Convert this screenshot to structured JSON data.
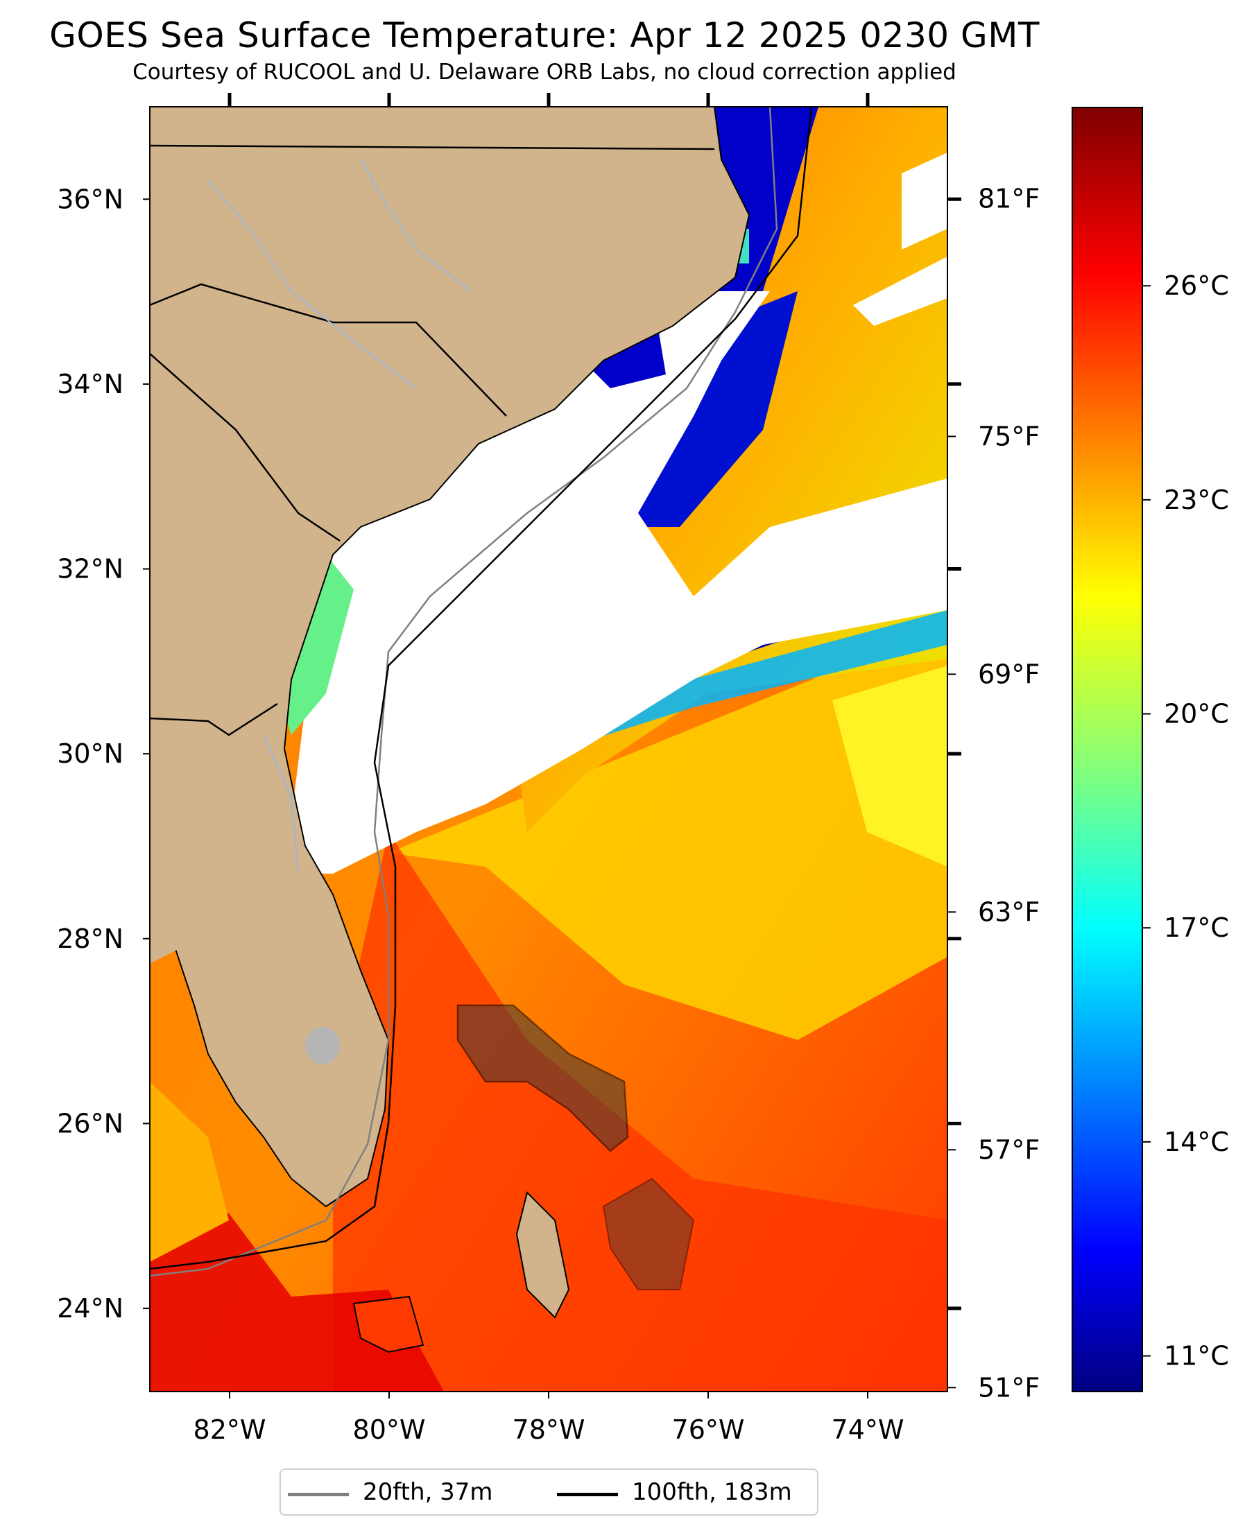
{
  "title": "GOES Sea Surface Temperature: Apr 12 2025 0230 GMT",
  "subtitle": "Courtesy of RUCOOL and U. Delaware ORB Labs, no cloud correction applied",
  "map": {
    "lon_range": [
      -83,
      -73
    ],
    "lat_range": [
      23.1,
      37
    ],
    "lat_ticks": [
      "24°N",
      "26°N",
      "28°N",
      "30°N",
      "32°N",
      "34°N",
      "36°N"
    ],
    "lon_ticks": [
      "82°W",
      "80°W",
      "78°W",
      "76°W",
      "74°W"
    ],
    "f_ticks": [
      "81°F",
      "75°F",
      "69°F",
      "63°F",
      "57°F",
      "51°F"
    ],
    "colors": {
      "land": "#d2b48c",
      "cloud": "#ffffff",
      "river": "#9bb8d6",
      "gulf_stream": "#ff2a00"
    }
  },
  "colorbar": {
    "c_ticks": [
      "26°C",
      "23°C",
      "20°C",
      "17°C",
      "14°C",
      "11°C"
    ],
    "range_c": [
      10.5,
      28.5
    ],
    "colormap": "jet"
  },
  "legend": [
    {
      "label": "20fth, 37m",
      "color": "#808080"
    },
    {
      "label": "100fth, 183m",
      "color": "#000000"
    }
  ]
}
